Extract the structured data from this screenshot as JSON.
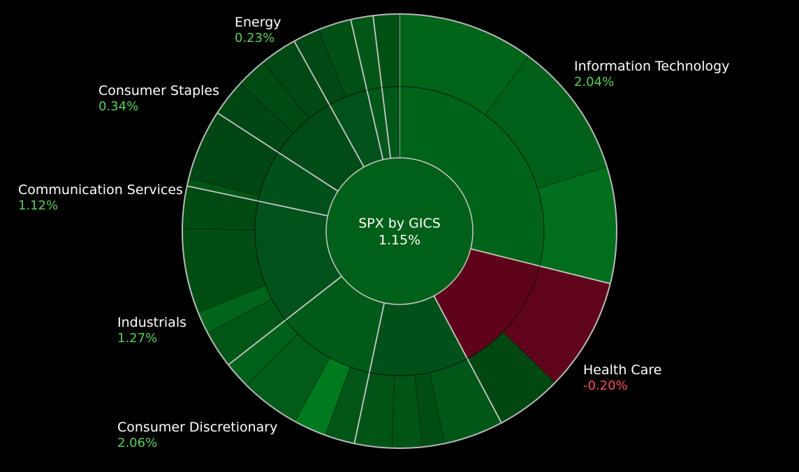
{
  "chart_data": {
    "type": "sunburst",
    "title": "SPX by GICS",
    "total_change": "1.15%",
    "colors": {
      "background": "#000000",
      "separator": "#c8c8c8",
      "positive_text": "#57d15a",
      "negative_text": "#ff4d5e",
      "label_text": "#ffffff"
    },
    "sectors": [
      {
        "name": "Information Technology",
        "change": "2.04%",
        "tone": "#00631a",
        "children": [
          {
            "tone": "#006419"
          },
          {
            "tone": "#005f18"
          },
          {
            "tone": "#006e1c"
          }
        ]
      },
      {
        "name": "Health Care",
        "change": "-0.20%",
        "tone": "#5e0319",
        "children": [
          {
            "tone": "#5f041b"
          },
          {
            "tone": "#004712"
          }
        ]
      },
      {
        "name": "",
        "change": "",
        "tone": "#00501a",
        "children": [
          {
            "tone": "#005717"
          },
          {
            "tone": "#004d14"
          },
          {
            "tone": "#005516"
          },
          {
            "tone": "#005416"
          }
        ]
      },
      {
        "name": "Consumer Discretionary",
        "change": "2.06%",
        "tone": "#005a18",
        "children": [
          {
            "tone": "#005517"
          },
          {
            "tone": "#007a1e"
          },
          {
            "tone": "#005c18"
          },
          {
            "tone": "#00621a"
          }
        ]
      },
      {
        "name": "Industrials",
        "change": "1.27%",
        "tone": "#00521a",
        "children": [
          {
            "tone": "#005616"
          },
          {
            "tone": "#00641a"
          },
          {
            "tone": "#004d14"
          },
          {
            "tone": "#004a13"
          }
        ]
      },
      {
        "name": "Communication Services",
        "change": "1.12%",
        "tone": "#00501a",
        "children": [
          {
            "tone": "#005616"
          },
          {
            "tone": "#004612"
          }
        ]
      },
      {
        "name": "Consumer Staples",
        "change": "0.34%",
        "tone": "#004b16",
        "children": [
          {
            "tone": "#004713"
          },
          {
            "tone": "#004a13"
          },
          {
            "tone": "#004814"
          }
        ]
      },
      {
        "name": "Energy",
        "change": "0.23%",
        "tone": "#00511a",
        "children": [
          {
            "tone": "#004814"
          },
          {
            "tone": "#005015"
          }
        ]
      },
      {
        "name": "",
        "change": "",
        "tone": "#00571a",
        "children": [
          {
            "tone": "#005617"
          }
        ]
      },
      {
        "name": "",
        "change": "",
        "tone": "#00571a",
        "children": [
          {
            "tone": "#005016"
          }
        ]
      }
    ]
  }
}
